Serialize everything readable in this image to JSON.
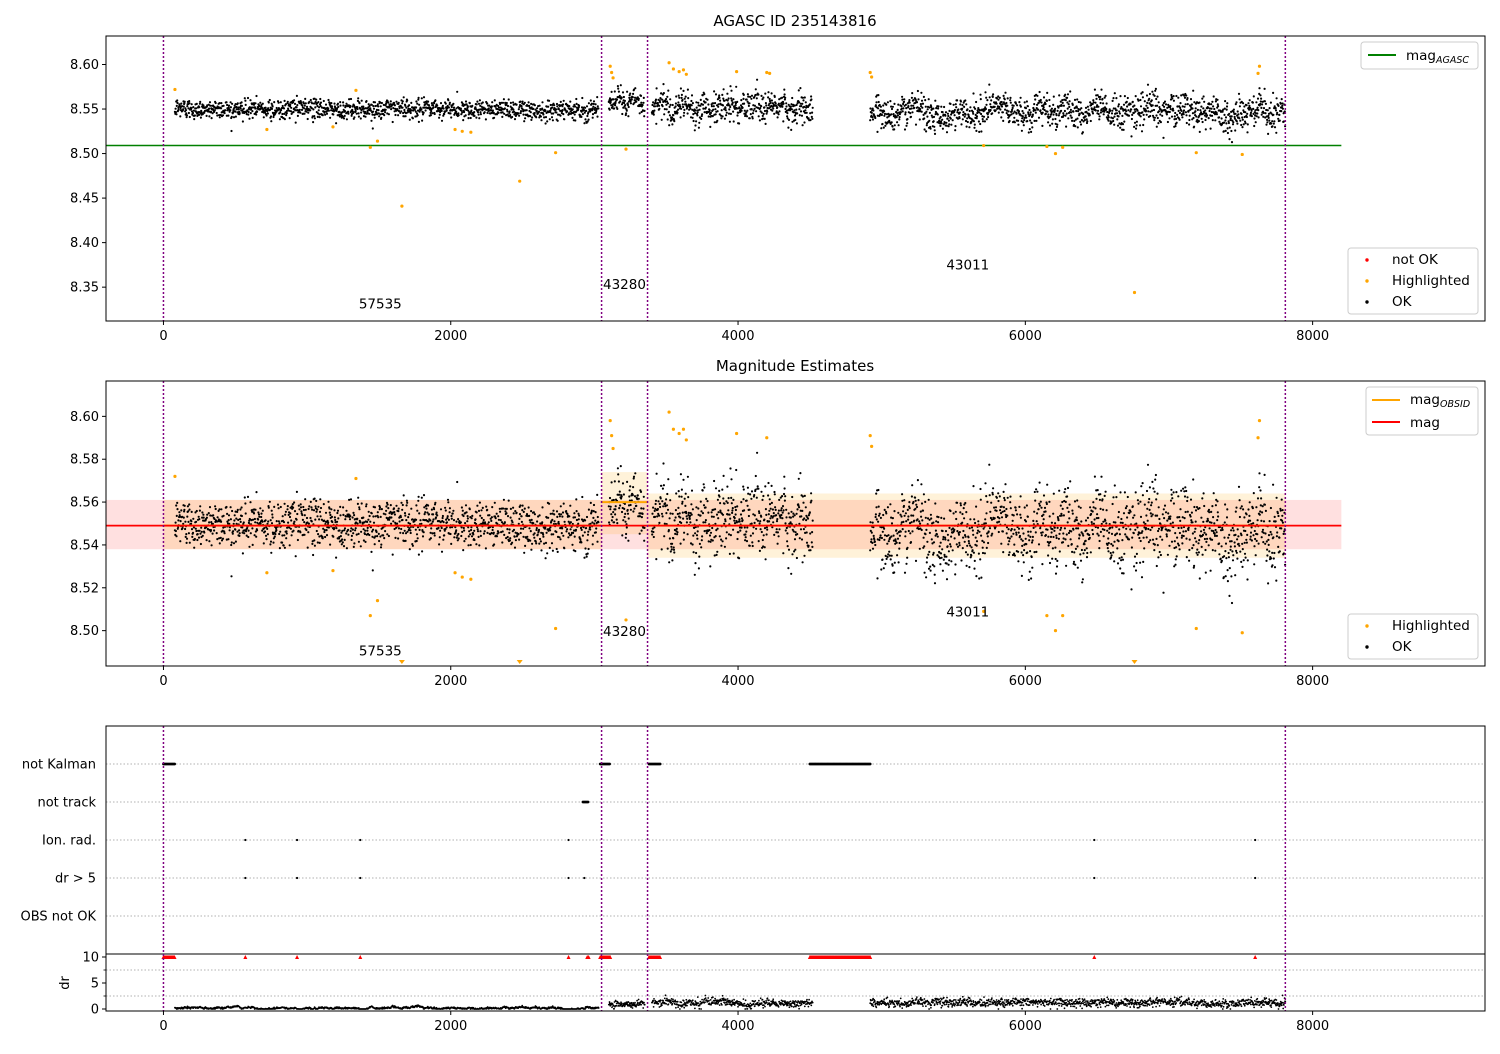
{
  "chart_data": [
    {
      "type": "scatter",
      "title": "AGASC ID 235143816",
      "xlim": [
        -400,
        9200
      ],
      "ylim": [
        8.312,
        8.632
      ],
      "xticks": [
        0,
        2000,
        4000,
        6000,
        8000
      ],
      "xtick_labels": [
        "0",
        "2000",
        "4000",
        "6000",
        "8000"
      ],
      "yticks": [
        8.35,
        8.4,
        8.45,
        8.5,
        8.55,
        8.6
      ],
      "ytick_labels": [
        "8.35",
        "8.40",
        "8.45",
        "8.50",
        "8.55",
        "8.60"
      ],
      "grid": false,
      "obs_boundaries": [
        0,
        3050,
        3370,
        7810
      ],
      "obs_labels": [
        {
          "text": "57535",
          "x": 1360,
          "y": 8.326
        },
        {
          "text": "43280",
          "x": 3060,
          "y": 8.348
        },
        {
          "text": "43011",
          "x": 5450,
          "y": 8.37
        }
      ],
      "reference_lines": [
        {
          "name": "mag_AGASC",
          "y": 8.509,
          "x": [
            -400,
            8200
          ],
          "color": "#008000"
        }
      ],
      "legends": [
        {
          "placement": "top-right",
          "entries": [
            {
              "label": "mag",
              "sub": "AGASC",
              "kind": "line",
              "color": "#008000"
            }
          ]
        },
        {
          "placement": "bottom-right",
          "entries": [
            {
              "label": "not OK",
              "kind": "dot",
              "color": "#ff0000"
            },
            {
              "label": "Highlighted",
              "kind": "dot",
              "color": "#ffa500"
            },
            {
              "label": "OK",
              "kind": "dot",
              "color": "#000000"
            }
          ]
        }
      ],
      "segments": [
        {
          "x": [
            80,
            3030
          ],
          "mean": 8.55,
          "sd": 0.0055
        },
        {
          "x": [
            3100,
            3350
          ],
          "mean": 8.558,
          "sd": 0.0065
        },
        {
          "x": [
            3400,
            4520
          ],
          "mean": 8.552,
          "sd": 0.0085
        },
        {
          "x": [
            4920,
            7810
          ],
          "mean": 8.547,
          "sd": 0.0085
        }
      ],
      "highlighted_points": [
        [
          80,
          8.572
        ],
        [
          720,
          8.527
        ],
        [
          1180,
          8.53
        ],
        [
          1340,
          8.571
        ],
        [
          1440,
          8.507
        ],
        [
          1490,
          8.514
        ],
        [
          1660,
          8.441
        ],
        [
          2030,
          8.527
        ],
        [
          2080,
          8.525
        ],
        [
          2140,
          8.524
        ],
        [
          2480,
          8.469
        ],
        [
          2730,
          8.501
        ],
        [
          3110,
          8.598
        ],
        [
          3120,
          8.591
        ],
        [
          3130,
          8.585
        ],
        [
          3220,
          8.505
        ],
        [
          3520,
          8.602
        ],
        [
          3550,
          8.595
        ],
        [
          3590,
          8.592
        ],
        [
          3620,
          8.594
        ],
        [
          3640,
          8.589
        ],
        [
          3990,
          8.592
        ],
        [
          4200,
          8.591
        ],
        [
          4220,
          8.59
        ],
        [
          4920,
          8.591
        ],
        [
          4930,
          8.586
        ],
        [
          5710,
          8.509
        ],
        [
          6150,
          8.508
        ],
        [
          6210,
          8.5
        ],
        [
          6260,
          8.507
        ],
        [
          6760,
          8.344
        ],
        [
          7190,
          8.501
        ],
        [
          7510,
          8.499
        ],
        [
          7630,
          8.598
        ],
        [
          7620,
          8.59
        ]
      ]
    },
    {
      "type": "scatter",
      "title": "Magnitude Estimates",
      "xlim": [
        -400,
        9200
      ],
      "ylim": [
        8.4835,
        8.6165
      ],
      "xticks": [
        0,
        2000,
        4000,
        6000,
        8000
      ],
      "xtick_labels": [
        "0",
        "2000",
        "4000",
        "6000",
        "8000"
      ],
      "yticks": [
        8.5,
        8.52,
        8.54,
        8.56,
        8.58,
        8.6
      ],
      "ytick_labels": [
        "8.50",
        "8.52",
        "8.54",
        "8.56",
        "8.58",
        "8.60"
      ],
      "grid": false,
      "obs_boundaries": [
        0,
        3050,
        3370,
        7810
      ],
      "obs_labels": [
        {
          "text": "57535",
          "x": 1360,
          "y": 8.4885
        },
        {
          "text": "43280",
          "x": 3060,
          "y": 8.4975
        },
        {
          "text": "43011",
          "x": 5450,
          "y": 8.5065
        }
      ],
      "mag_line": {
        "name": "mag",
        "y": 8.549,
        "x": [
          -400,
          8200
        ],
        "band": [
          8.538,
          8.561
        ],
        "color": "#ff0000"
      },
      "mag_obsid": [
        {
          "x": [
            0,
            3050
          ],
          "y": 8.549,
          "band": [
            8.538,
            8.561
          ]
        },
        {
          "x": [
            3050,
            3370
          ],
          "y": 8.56,
          "band": [
            8.545,
            8.574
          ]
        },
        {
          "x": [
            3370,
            7810
          ],
          "y": 8.549,
          "band": [
            8.534,
            8.564
          ]
        }
      ],
      "legends": [
        {
          "placement": "top-right",
          "entries": [
            {
              "label": "mag",
              "sub": "OBSID",
              "kind": "line",
              "color": "#ffa500"
            },
            {
              "label": "mag",
              "sub": "",
              "kind": "line",
              "color": "#ff0000"
            }
          ]
        },
        {
          "placement": "bottom-right",
          "entries": [
            {
              "label": "Highlighted",
              "kind": "dot",
              "color": "#ffa500"
            },
            {
              "label": "OK",
              "kind": "dot",
              "color": "#000000"
            }
          ]
        }
      ],
      "highlighted_points": [
        [
          80,
          8.572
        ],
        [
          720,
          8.527
        ],
        [
          1180,
          8.528
        ],
        [
          1340,
          8.571
        ],
        [
          1440,
          8.507
        ],
        [
          1490,
          8.514
        ],
        [
          2030,
          8.527
        ],
        [
          2080,
          8.525
        ],
        [
          2140,
          8.524
        ],
        [
          2730,
          8.501
        ],
        [
          3110,
          8.598
        ],
        [
          3120,
          8.591
        ],
        [
          3130,
          8.585
        ],
        [
          3220,
          8.505
        ],
        [
          3520,
          8.602
        ],
        [
          3550,
          8.594
        ],
        [
          3590,
          8.592
        ],
        [
          3620,
          8.594
        ],
        [
          3640,
          8.589
        ],
        [
          3990,
          8.592
        ],
        [
          4200,
          8.59
        ],
        [
          4920,
          8.591
        ],
        [
          4930,
          8.586
        ],
        [
          5710,
          8.509
        ],
        [
          6150,
          8.507
        ],
        [
          6210,
          8.5
        ],
        [
          6260,
          8.507
        ],
        [
          7190,
          8.501
        ],
        [
          7510,
          8.499
        ],
        [
          7630,
          8.598
        ],
        [
          7620,
          8.59
        ]
      ],
      "out_of_range_markers": [
        1660,
        2480,
        6760
      ]
    },
    {
      "type": "scatter",
      "title": "",
      "xlim": [
        -400,
        9200
      ],
      "xticks": [
        0,
        2000,
        4000,
        6000,
        8000
      ],
      "xtick_labels": [
        "0",
        "2000",
        "4000",
        "6000",
        "8000"
      ],
      "obs_boundaries": [
        0,
        3050,
        3370,
        7810
      ],
      "flag_rows": [
        "not Kalman",
        "not track",
        "Ion. rad.",
        "dr > 5",
        "OBS not OK"
      ],
      "flags": {
        "not Kalman": [
          [
            0,
            80
          ],
          [
            3040,
            3110
          ],
          [
            3380,
            3460
          ],
          [
            4500,
            4920
          ]
        ],
        "not track": [
          [
            2920,
            2960
          ]
        ],
        "Ion. rad.": [
          570,
          930,
          1370,
          2820,
          6480,
          7600
        ],
        "dr > 5": [
          570,
          930,
          1370,
          2820,
          2930,
          6480,
          7600
        ],
        "OBS not OK": []
      },
      "dr": {
        "ylabel": "dr",
        "ylim": [
          -0.5,
          10.5
        ],
        "yticks": [
          0,
          5,
          10
        ],
        "ytick_labels": [
          "0",
          "5",
          "10"
        ],
        "segments": [
          {
            "x": [
              80,
              3030
            ],
            "mean": 0.2
          },
          {
            "x": [
              3100,
              3350
            ],
            "mean": 0.9
          },
          {
            "x": [
              3400,
              4520
            ],
            "mean": 1.2
          },
          {
            "x": [
              4920,
              7810
            ],
            "mean": 1.2
          }
        ],
        "clipped_points_at_10": [
          [
            0,
            80
          ],
          [
            3040,
            3110
          ],
          [
            3380,
            3460
          ],
          [
            4500,
            4920
          ]
        ],
        "clipped_single": [
          570,
          930,
          1370,
          2820,
          2950,
          2960,
          6480,
          7600
        ]
      }
    }
  ]
}
